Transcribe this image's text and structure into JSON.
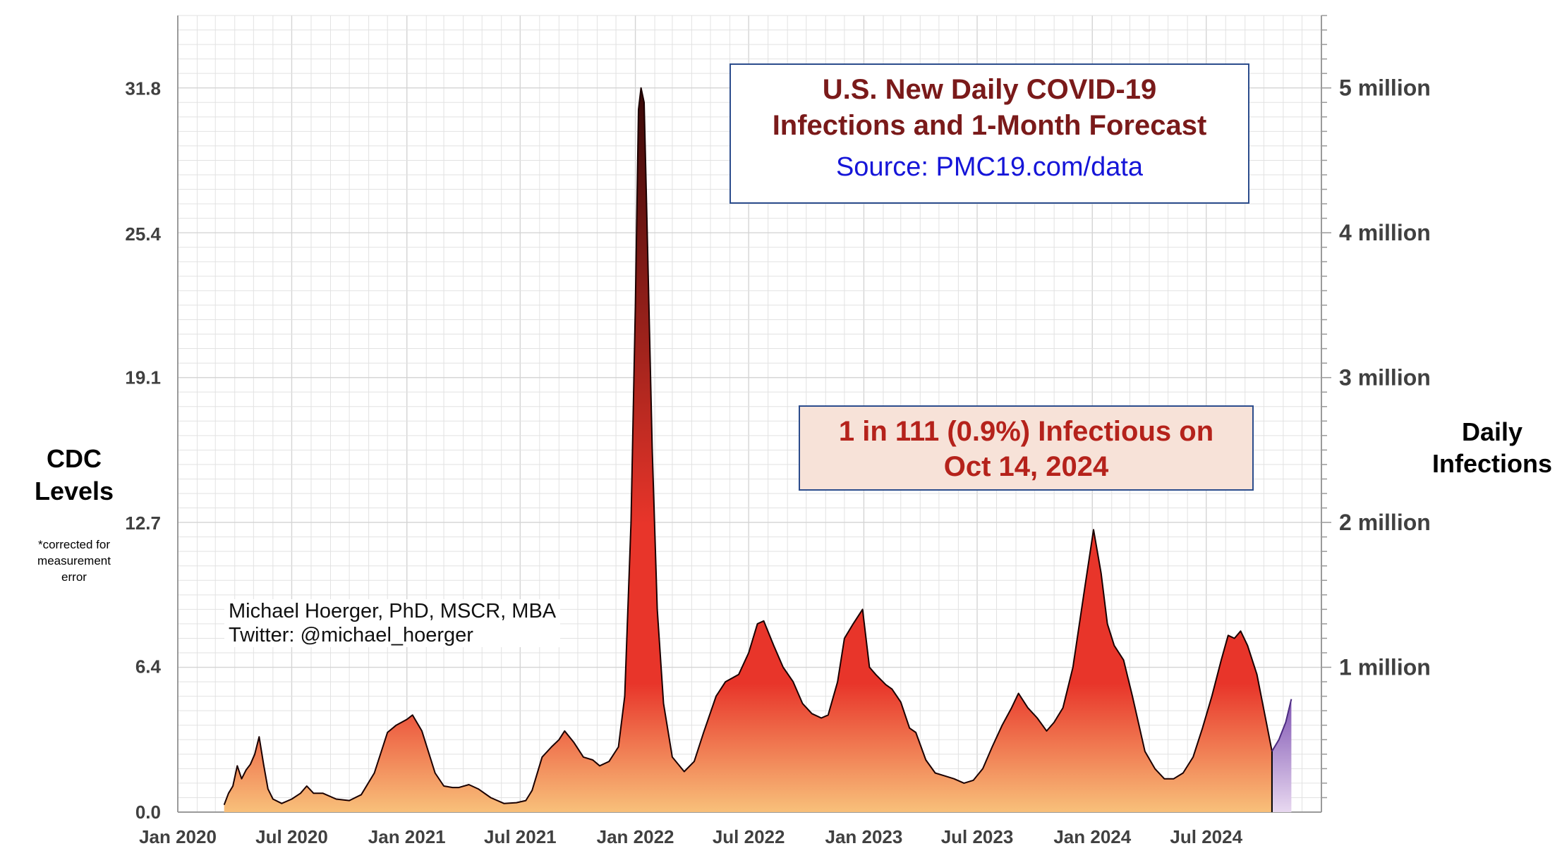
{
  "title_lines": [
    "U.S. New Daily COVID-19",
    "Infections and 1-Month Forecast"
  ],
  "source": "Source: PMC19.com/data",
  "callout_lines": [
    "1 in 111 (0.9%) Infectious on",
    "Oct 14, 2024"
  ],
  "author_lines": [
    "Michael Hoerger, PhD, MSCR, MBA",
    "Twitter: @michael_hoerger"
  ],
  "left_axis_title": [
    "CDC",
    "Levels"
  ],
  "left_axis_note": [
    "*corrected for",
    "measurement",
    "error"
  ],
  "right_axis_title": [
    "Daily",
    "Infections"
  ],
  "colors": {
    "area_top": "#2a0505",
    "area_mid": "#e8352a",
    "area_bottom": "#f8c07a",
    "forecast_top": "#7b4fb0",
    "forecast_bottom": "#e8d8f0",
    "title": "#7a1a1a",
    "source_link": "#1515d8",
    "callout_text": "#b5221b",
    "callout_bg": "#f7e2d8",
    "box_border": "#2b4c8c",
    "grid": "#e2e2e2"
  },
  "chart_data": {
    "type": "area",
    "x_tick_labels": [
      "Jan 2020",
      "Jul 2020",
      "Jan 2021",
      "Jul 2021",
      "Jan 2022",
      "Jul 2022",
      "Jan 2023",
      "Jul 2023",
      "Jan 2024",
      "Jul 2024"
    ],
    "y_left_tick_labels": [
      "0.0",
      "6.4",
      "12.7",
      "19.1",
      "25.4",
      "31.8"
    ],
    "y_right_tick_labels": [
      "1 million",
      "2 million",
      "3 million",
      "4 million",
      "5 million"
    ],
    "ylim_cdc_levels": [
      0,
      35
    ],
    "ylim_daily_infections": [
      0,
      5500000
    ],
    "grid": true,
    "series": [
      {
        "points": [
          [
            "2020-03-15",
            50000
          ],
          [
            "2020-03-22",
            130000
          ],
          [
            "2020-03-29",
            180000
          ],
          [
            "2020-04-05",
            320000
          ],
          [
            "2020-04-12",
            230000
          ],
          [
            "2020-04-19",
            290000
          ],
          [
            "2020-04-26",
            330000
          ],
          [
            "2020-05-03",
            400000
          ],
          [
            "2020-05-10",
            520000
          ],
          [
            "2020-05-17",
            330000
          ],
          [
            "2020-05-24",
            160000
          ],
          [
            "2020-06-01",
            90000
          ],
          [
            "2020-06-15",
            60000
          ],
          [
            "2020-07-01",
            90000
          ],
          [
            "2020-07-15",
            130000
          ],
          [
            "2020-07-25",
            180000
          ],
          [
            "2020-08-05",
            130000
          ],
          [
            "2020-08-20",
            130000
          ],
          [
            "2020-09-10",
            90000
          ],
          [
            "2020-10-01",
            80000
          ],
          [
            "2020-10-20",
            120000
          ],
          [
            "2020-11-10",
            270000
          ],
          [
            "2020-12-01",
            550000
          ],
          [
            "2020-12-15",
            600000
          ],
          [
            "2021-01-01",
            640000
          ],
          [
            "2021-01-10",
            670000
          ],
          [
            "2021-01-25",
            560000
          ],
          [
            "2021-02-15",
            270000
          ],
          [
            "2021-03-01",
            180000
          ],
          [
            "2021-03-15",
            170000
          ],
          [
            "2021-03-25",
            170000
          ],
          [
            "2021-04-10",
            190000
          ],
          [
            "2021-04-25",
            160000
          ],
          [
            "2021-05-15",
            100000
          ],
          [
            "2021-06-05",
            60000
          ],
          [
            "2021-06-25",
            65000
          ],
          [
            "2021-07-10",
            80000
          ],
          [
            "2021-07-20",
            150000
          ],
          [
            "2021-08-05",
            380000
          ],
          [
            "2021-08-20",
            450000
          ],
          [
            "2021-09-01",
            500000
          ],
          [
            "2021-09-10",
            560000
          ],
          [
            "2021-09-25",
            480000
          ],
          [
            "2021-10-10",
            380000
          ],
          [
            "2021-10-25",
            360000
          ],
          [
            "2021-11-05",
            320000
          ],
          [
            "2021-11-20",
            350000
          ],
          [
            "2021-12-05",
            450000
          ],
          [
            "2021-12-15",
            800000
          ],
          [
            "2021-12-25",
            2000000
          ],
          [
            "2022-01-01",
            3500000
          ],
          [
            "2022-01-06",
            4850000
          ],
          [
            "2022-01-10",
            5000000
          ],
          [
            "2022-01-15",
            4900000
          ],
          [
            "2022-01-20",
            4000000
          ],
          [
            "2022-01-28",
            2500000
          ],
          [
            "2022-02-05",
            1400000
          ],
          [
            "2022-02-15",
            750000
          ],
          [
            "2022-03-01",
            380000
          ],
          [
            "2022-03-20",
            280000
          ],
          [
            "2022-04-05",
            350000
          ],
          [
            "2022-04-20",
            550000
          ],
          [
            "2022-05-10",
            800000
          ],
          [
            "2022-05-25",
            900000
          ],
          [
            "2022-06-15",
            950000
          ],
          [
            "2022-07-01",
            1100000
          ],
          [
            "2022-07-15",
            1300000
          ],
          [
            "2022-07-25",
            1320000
          ],
          [
            "2022-08-10",
            1150000
          ],
          [
            "2022-08-25",
            1000000
          ],
          [
            "2022-09-10",
            900000
          ],
          [
            "2022-09-25",
            750000
          ],
          [
            "2022-10-10",
            680000
          ],
          [
            "2022-10-25",
            650000
          ],
          [
            "2022-11-05",
            670000
          ],
          [
            "2022-11-20",
            900000
          ],
          [
            "2022-12-01",
            1200000
          ],
          [
            "2022-12-15",
            1300000
          ],
          [
            "2022-12-30",
            1400000
          ],
          [
            "2023-01-10",
            1000000
          ],
          [
            "2023-01-20",
            950000
          ],
          [
            "2023-02-05",
            880000
          ],
          [
            "2023-02-15",
            850000
          ],
          [
            "2023-03-01",
            760000
          ],
          [
            "2023-03-15",
            580000
          ],
          [
            "2023-03-25",
            550000
          ],
          [
            "2023-04-10",
            360000
          ],
          [
            "2023-04-25",
            270000
          ],
          [
            "2023-05-10",
            250000
          ],
          [
            "2023-05-25",
            230000
          ],
          [
            "2023-06-10",
            200000
          ],
          [
            "2023-06-25",
            220000
          ],
          [
            "2023-07-10",
            300000
          ],
          [
            "2023-07-25",
            450000
          ],
          [
            "2023-08-10",
            600000
          ],
          [
            "2023-08-25",
            720000
          ],
          [
            "2023-09-05",
            820000
          ],
          [
            "2023-09-20",
            720000
          ],
          [
            "2023-10-05",
            650000
          ],
          [
            "2023-10-20",
            560000
          ],
          [
            "2023-11-01",
            620000
          ],
          [
            "2023-11-15",
            720000
          ],
          [
            "2023-12-01",
            1000000
          ],
          [
            "2023-12-20",
            1550000
          ],
          [
            "2024-01-03",
            1950000
          ],
          [
            "2024-01-15",
            1650000
          ],
          [
            "2024-01-25",
            1300000
          ],
          [
            "2024-02-05",
            1150000
          ],
          [
            "2024-02-20",
            1050000
          ],
          [
            "2024-03-05",
            800000
          ],
          [
            "2024-03-25",
            420000
          ],
          [
            "2024-04-10",
            300000
          ],
          [
            "2024-04-25",
            230000
          ],
          [
            "2024-05-10",
            230000
          ],
          [
            "2024-05-25",
            270000
          ],
          [
            "2024-06-10",
            380000
          ],
          [
            "2024-06-25",
            580000
          ],
          [
            "2024-07-10",
            800000
          ],
          [
            "2024-07-25",
            1050000
          ],
          [
            "2024-08-05",
            1220000
          ],
          [
            "2024-08-15",
            1200000
          ],
          [
            "2024-08-25",
            1250000
          ],
          [
            "2024-09-05",
            1150000
          ],
          [
            "2024-09-20",
            950000
          ],
          [
            "2024-10-05",
            620000
          ],
          [
            "2024-10-14",
            420000
          ]
        ]
      },
      {
        "name": "forecast",
        "points": [
          [
            "2024-10-14",
            420000
          ],
          [
            "2024-10-25",
            500000
          ],
          [
            "2024-11-05",
            620000
          ],
          [
            "2024-11-14",
            780000
          ]
        ]
      }
    ]
  }
}
